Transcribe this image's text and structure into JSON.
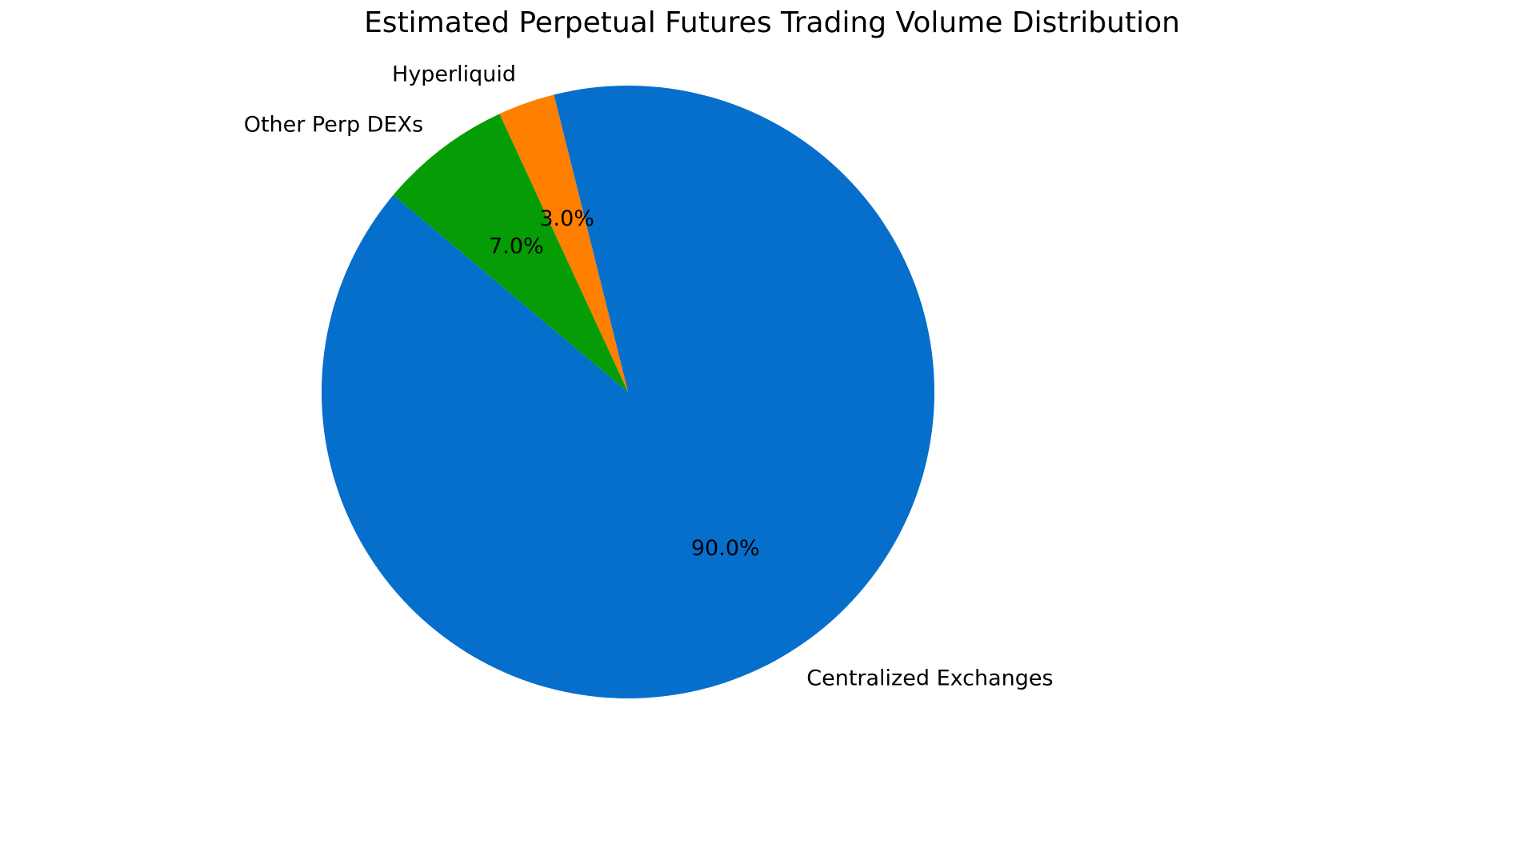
{
  "chart_data": {
    "type": "pie",
    "title": "Estimated Perpetual Futures Trading Volume Distribution",
    "categories": [
      "Centralized Exchanges",
      "Hyperliquid",
      "Other Perp DEXs"
    ],
    "values": [
      90.0,
      3.0,
      7.0
    ],
    "value_labels": [
      "90.0%",
      "3.0%",
      "7.0%"
    ],
    "colors": [
      "#066FCC",
      "#FF7F00",
      "#069C06"
    ],
    "start_angle_deg": 140,
    "direction": "counterclockwise",
    "legend": false
  },
  "chart": {
    "title": "Estimated Perpetual Futures Trading Volume Distribution"
  }
}
